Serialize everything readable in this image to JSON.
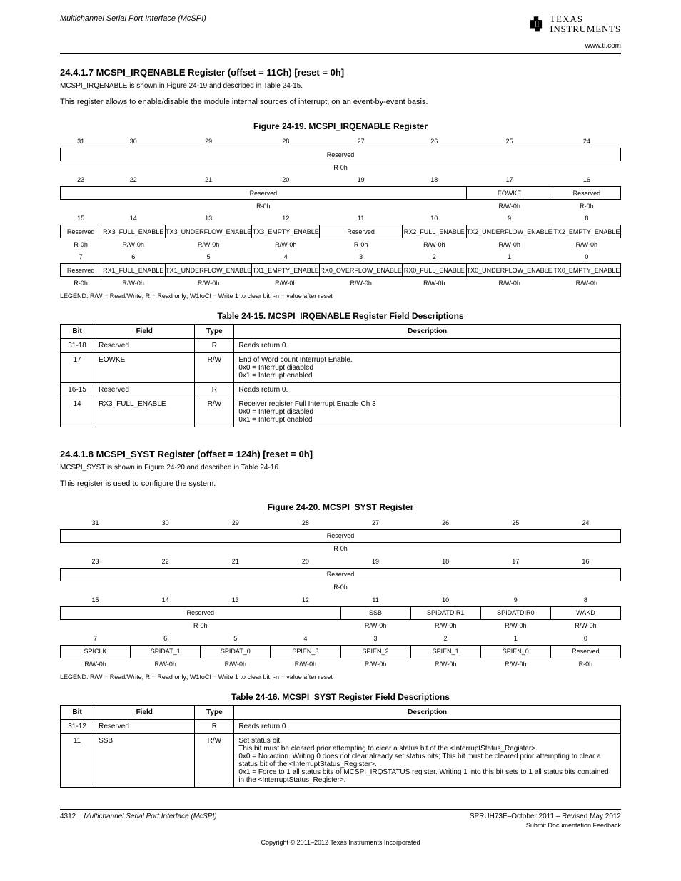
{
  "header": {
    "module_title": "Multichannel Serial Port Interface (McSPI)",
    "site": "www.ti.com",
    "logo_top": "TEXAS",
    "logo_bottom": "INSTRUMENTS"
  },
  "section1": {
    "num_title": "24.4.1.7 MCSPI_IRQENABLE Register (offset = 11Ch) [reset = 0h]",
    "idx_line": "MCSPI_IRQENABLE is shown in Figure 24-19 and described in Table 24-15.",
    "para": "This register allows to enable/disable the module internal sources of interrupt, on an event-by-event basis.",
    "figure_caption": "Figure 24-19. MCSPI_IRQENABLE Register",
    "bitbox": {
      "row1_nums": [
        "31",
        "30",
        "29",
        "28",
        "27",
        "26",
        "25",
        "24"
      ],
      "row1_cells": [
        {
          "label": "Reserved",
          "span": 8
        }
      ],
      "row1_rw": [
        {
          "label": "R-0h",
          "span": 8
        }
      ],
      "row2_nums": [
        "23",
        "22",
        "21",
        "20",
        "19",
        "18",
        "17",
        "16"
      ],
      "row2_cells": [
        {
          "label": "Reserved",
          "span": 6
        },
        {
          "label": "EOWKE",
          "span": 1
        },
        {
          "label": "Reserved",
          "span": 1
        }
      ],
      "row2_rw": [
        {
          "label": "R-0h",
          "span": 6
        },
        {
          "label": "R/W-0h",
          "span": 1
        },
        {
          "label": "R-0h",
          "span": 1
        }
      ],
      "row3_nums": [
        "15",
        "14",
        "13",
        "12",
        "11",
        "10",
        "9",
        "8"
      ],
      "row3_cells": [
        {
          "label": "Reserved",
          "span": 1
        },
        {
          "label": "RX3_FULL_ENABLE",
          "span": 1
        },
        {
          "label": "TX3_UNDERFLOW_ENABLE",
          "span": 1
        },
        {
          "label": "TX3_EMPTY_ENABLE",
          "span": 1
        },
        {
          "label": "Reserved",
          "span": 1
        },
        {
          "label": "RX2_FULL_ENABLE",
          "span": 1
        },
        {
          "label": "TX2_UNDERFLOW_ENABLE",
          "span": 1
        },
        {
          "label": "TX2_EMPTY_ENABLE",
          "span": 1
        }
      ],
      "row3_rw": [
        {
          "label": "R-0h",
          "span": 1
        },
        {
          "label": "R/W-0h",
          "span": 1
        },
        {
          "label": "R/W-0h",
          "span": 1
        },
        {
          "label": "R/W-0h",
          "span": 1
        },
        {
          "label": "R-0h",
          "span": 1
        },
        {
          "label": "R/W-0h",
          "span": 1
        },
        {
          "label": "R/W-0h",
          "span": 1
        },
        {
          "label": "R/W-0h",
          "span": 1
        }
      ],
      "row4_nums": [
        "7",
        "6",
        "5",
        "4",
        "3",
        "2",
        "1",
        "0"
      ],
      "row4_cells": [
        {
          "label": "Reserved",
          "span": 1
        },
        {
          "label": "RX1_FULL_ENABLE",
          "span": 1
        },
        {
          "label": "TX1_UNDERFLOW_ENABLE",
          "span": 1
        },
        {
          "label": "TX1_EMPTY_ENABLE",
          "span": 1
        },
        {
          "label": "RX0_OVERFLOW_ENABLE",
          "span": 1
        },
        {
          "label": "RX0_FULL_ENABLE",
          "span": 1
        },
        {
          "label": "TX0_UNDERFLOW_ENABLE",
          "span": 1
        },
        {
          "label": "TX0_EMPTY_ENABLE",
          "span": 1
        }
      ],
      "row4_rw": [
        {
          "label": "R-0h",
          "span": 1
        },
        {
          "label": "R/W-0h",
          "span": 1
        },
        {
          "label": "R/W-0h",
          "span": 1
        },
        {
          "label": "R/W-0h",
          "span": 1
        },
        {
          "label": "R/W-0h",
          "span": 1
        },
        {
          "label": "R/W-0h",
          "span": 1
        },
        {
          "label": "R/W-0h",
          "span": 1
        },
        {
          "label": "R/W-0h",
          "span": 1
        }
      ]
    },
    "legend": "LEGEND: R/W = Read/Write; R = Read only; W1toCl = Write 1 to clear bit; -n = value after reset",
    "table_caption": "Table 24-15. MCSPI_IRQENABLE Register Field Descriptions",
    "table_headers": [
      "Bit",
      "Field",
      "Type",
      "Description"
    ],
    "rows": [
      {
        "bit": "31-18",
        "field": "Reserved",
        "type": "R",
        "desc": [
          "Reads return 0."
        ]
      },
      {
        "bit": "17",
        "field": "EOWKE",
        "type": "R/W",
        "desc": [
          "End of Word count Interrupt Enable.",
          "0x0 = Interrupt disabled",
          "0x1 = Interrupt enabled"
        ]
      },
      {
        "bit": "16-15",
        "field": "Reserved",
        "type": "R",
        "desc": [
          "Reads return 0."
        ]
      },
      {
        "bit": "14",
        "field": "RX3_FULL_ENABLE",
        "type": "R/W",
        "desc": [
          "Receiver register Full Interrupt Enable Ch 3",
          "0x0 = Interrupt disabled",
          "0x1 = Interrupt enabled"
        ]
      }
    ]
  },
  "section2": {
    "num_title": "24.4.1.8 MCSPI_SYST Register (offset = 124h) [reset = 0h]",
    "idx_line": "MCSPI_SYST is shown in Figure 24-20 and described in Table 24-16.",
    "para": "This register is used to configure the system.",
    "figure_caption": "Figure 24-20. MCSPI_SYST Register",
    "bitbox": {
      "row1_nums": [
        "31",
        "30",
        "29",
        "28",
        "27",
        "26",
        "25",
        "24"
      ],
      "row1_cells": [
        {
          "label": "Reserved",
          "span": 8
        }
      ],
      "row1_rw": [
        {
          "label": "R-0h",
          "span": 8
        }
      ],
      "row2_nums": [
        "23",
        "22",
        "21",
        "20",
        "19",
        "18",
        "17",
        "16"
      ],
      "row2_cells": [
        {
          "label": "Reserved",
          "span": 8
        }
      ],
      "row2_rw": [
        {
          "label": "R-0h",
          "span": 8
        }
      ],
      "row3_nums": [
        "15",
        "14",
        "13",
        "12",
        "11",
        "10",
        "9",
        "8"
      ],
      "row3_cells": [
        {
          "label": "Reserved",
          "span": 4
        },
        {
          "label": "SSB",
          "span": 1
        },
        {
          "label": "SPIDATDIR1",
          "span": 1
        },
        {
          "label": "SPIDATDIR0",
          "span": 1
        },
        {
          "label": "WAKD",
          "span": 1
        }
      ],
      "row3_rw": [
        {
          "label": "R-0h",
          "span": 4
        },
        {
          "label": "R/W-0h",
          "span": 1
        },
        {
          "label": "R/W-0h",
          "span": 1
        },
        {
          "label": "R/W-0h",
          "span": 1
        },
        {
          "label": "R/W-0h",
          "span": 1
        }
      ],
      "row4_nums": [
        "7",
        "6",
        "5",
        "4",
        "3",
        "2",
        "1",
        "0"
      ],
      "row4_cells": [
        {
          "label": "SPICLK",
          "span": 1
        },
        {
          "label": "SPIDAT_1",
          "span": 1
        },
        {
          "label": "SPIDAT_0",
          "span": 1
        },
        {
          "label": "SPIEN_3",
          "span": 1
        },
        {
          "label": "SPIEN_2",
          "span": 1
        },
        {
          "label": "SPIEN_1",
          "span": 1
        },
        {
          "label": "SPIEN_0",
          "span": 1
        },
        {
          "label": "Reserved",
          "span": 1
        }
      ],
      "row4_rw": [
        {
          "label": "R/W-0h",
          "span": 1
        },
        {
          "label": "R/W-0h",
          "span": 1
        },
        {
          "label": "R/W-0h",
          "span": 1
        },
        {
          "label": "R/W-0h",
          "span": 1
        },
        {
          "label": "R/W-0h",
          "span": 1
        },
        {
          "label": "R/W-0h",
          "span": 1
        },
        {
          "label": "R/W-0h",
          "span": 1
        },
        {
          "label": "R-0h",
          "span": 1
        }
      ]
    },
    "legend": "LEGEND: R/W = Read/Write; R = Read only; W1toCl = Write 1 to clear bit; -n = value after reset",
    "table_caption": "Table 24-16. MCSPI_SYST Register Field Descriptions",
    "table_headers": [
      "Bit",
      "Field",
      "Type",
      "Description"
    ],
    "rows": [
      {
        "bit": "31-12",
        "field": "Reserved",
        "type": "R",
        "desc": [
          "Reads return 0."
        ]
      },
      {
        "bit": "11",
        "field": "SSB",
        "type": "R/W",
        "desc": [
          "Set status bit.",
          "This bit must be cleared prior attempting to clear a status bit of the <InterruptStatus_Register>.",
          "0x0 = No action. Writing 0 does not clear already set status bits; This bit must be cleared prior attempting to clear a status bit of the <InterruptStatus_Register>.",
          "0x1 = Force to 1 all status bits of MCSPI_IRQSTATUS register. Writing 1 into this bit sets to 1 all status bits contained in the <InterruptStatus_Register>."
        ]
      }
    ]
  },
  "footer": {
    "page_num": "4312",
    "doc_title": "Multichannel Serial Port Interface (McSPI)",
    "doc_id": "SPRUH73E–October 2011 – Revised May 2012",
    "submit_text": "Submit Documentation Feedback",
    "copyright": "Copyright © 2011–2012 Texas Instruments Incorporated"
  }
}
